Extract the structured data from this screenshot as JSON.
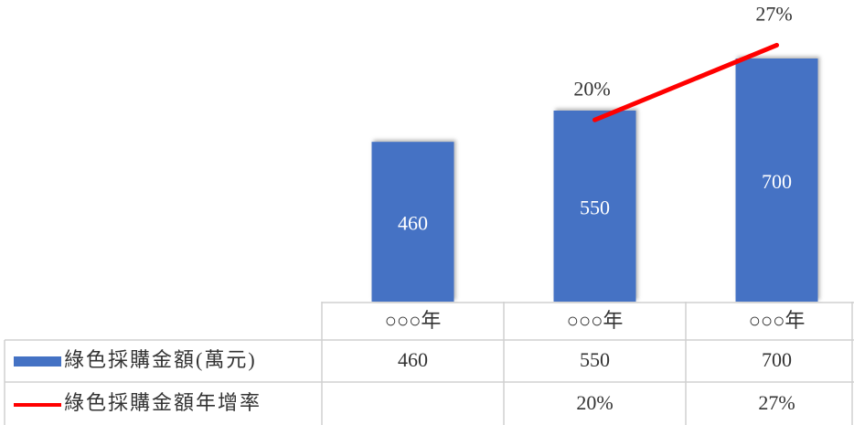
{
  "chart_data": {
    "type": "bar",
    "categories": [
      "○○○年",
      "○○○年",
      "○○○年"
    ],
    "ylim": [
      0,
      800
    ],
    "y2lim": [
      3,
      29
    ],
    "series": [
      {
        "name": "綠色採購金額(萬元)",
        "color": "#4472c4",
        "values": [
          460,
          550,
          700
        ]
      },
      {
        "name": "綠色採購金額年增率",
        "color": "#ff0000",
        "type": "line",
        "axis": "y2",
        "values": [
          null,
          20,
          27
        ],
        "value_labels": [
          null,
          "20%",
          "27%"
        ]
      }
    ]
  }
}
